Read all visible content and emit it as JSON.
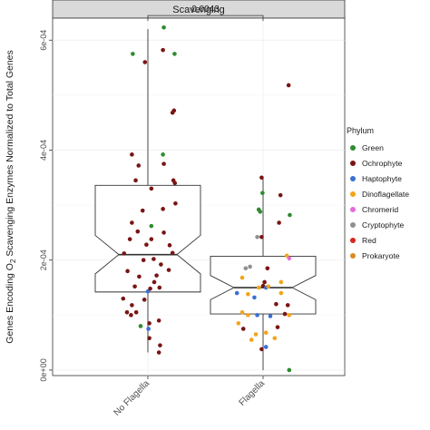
{
  "panel": {
    "strip_label": "Scavenging"
  },
  "significance": {
    "label": "0.0043"
  },
  "legend": {
    "title": "Phylum",
    "items": [
      {
        "label": "Green",
        "color": "#2e8b2e"
      },
      {
        "label": "Ochrophyte",
        "color": "#7a1414"
      },
      {
        "label": "Haptophyte",
        "color": "#3b6fd4"
      },
      {
        "label": "Dinoflagellate",
        "color": "#f2a51a"
      },
      {
        "label": "Chromerid",
        "color": "#e56bd9"
      },
      {
        "label": "Cryptophyte",
        "color": "#909090"
      },
      {
        "label": "Red",
        "color": "#d7261e"
      },
      {
        "label": "Prokaryote",
        "color": "#d98c1e"
      }
    ]
  },
  "chart_data": {
    "type": "boxplot",
    "title": "Scavenging",
    "ylabel": "Genes Encoding O2 Scavenging Enzymes Normalized to Total Genes",
    "ylabel_parts": {
      "before": "Genes Encoding O",
      "sub": "2",
      "after": " Scavenging Enzymes Normalized to Total Genes"
    },
    "xlabel": "",
    "ylim": [
      -1e-05,
      0.00064
    ],
    "y_ticks": [
      {
        "value": 0,
        "label": "0e+00"
      },
      {
        "value": 0.0002,
        "label": "2e-04"
      },
      {
        "value": 0.0004,
        "label": "4e-04"
      },
      {
        "value": 0.0006,
        "label": "6e-04"
      }
    ],
    "notched": true,
    "grid": true,
    "legend_position": "right",
    "categories": [
      "No Flagella",
      "Flagella"
    ],
    "boxes": [
      {
        "category": "No Flagella",
        "min": 3.2e-05,
        "q1": 0.000142,
        "median": 0.00021,
        "q3": 0.000336,
        "max": 0.00062,
        "notch_low": 0.000175,
        "notch_high": 0.000245
      },
      {
        "category": "Flagella",
        "min": 0.0,
        "q1": 0.000102,
        "median": 0.00015,
        "q3": 0.000207,
        "max": 0.00035,
        "notch_low": 0.000128,
        "notch_high": 0.000172
      }
    ],
    "points": [
      {
        "category": "No Flagella",
        "jitter": 0.55,
        "value": 0.000623,
        "phylum": "Green"
      },
      {
        "category": "No Flagella",
        "jitter": -0.52,
        "value": 0.000575,
        "phylum": "Green"
      },
      {
        "category": "No Flagella",
        "jitter": -0.1,
        "value": 0.00056,
        "phylum": "Ochrophyte"
      },
      {
        "category": "No Flagella",
        "jitter": 0.52,
        "value": 0.000582,
        "phylum": "Ochrophyte"
      },
      {
        "category": "No Flagella",
        "jitter": 0.92,
        "value": 0.000575,
        "phylum": "Green"
      },
      {
        "category": "No Flagella",
        "jitter": 0.9,
        "value": 0.000472,
        "phylum": "Ochrophyte"
      },
      {
        "category": "No Flagella",
        "jitter": 0.85,
        "value": 0.000468,
        "phylum": "Ochrophyte"
      },
      {
        "category": "No Flagella",
        "jitter": -0.55,
        "value": 0.000392,
        "phylum": "Ochrophyte"
      },
      {
        "category": "No Flagella",
        "jitter": -0.32,
        "value": 0.000372,
        "phylum": "Ochrophyte"
      },
      {
        "category": "No Flagella",
        "jitter": 0.52,
        "value": 0.000392,
        "phylum": "Green"
      },
      {
        "category": "No Flagella",
        "jitter": 0.55,
        "value": 0.000375,
        "phylum": "Ochrophyte"
      },
      {
        "category": "No Flagella",
        "jitter": -0.42,
        "value": 0.000345,
        "phylum": "Ochrophyte"
      },
      {
        "category": "No Flagella",
        "jitter": 0.88,
        "value": 0.000345,
        "phylum": "Ochrophyte"
      },
      {
        "category": "No Flagella",
        "jitter": 0.93,
        "value": 0.00034,
        "phylum": "Ochrophyte"
      },
      {
        "category": "No Flagella",
        "jitter": 0.12,
        "value": 0.00033,
        "phylum": "Ochrophyte"
      },
      {
        "category": "No Flagella",
        "jitter": -0.18,
        "value": 0.00029,
        "phylum": "Ochrophyte"
      },
      {
        "category": "No Flagella",
        "jitter": 0.52,
        "value": 0.000293,
        "phylum": "Ochrophyte"
      },
      {
        "category": "No Flagella",
        "jitter": 0.95,
        "value": 0.000303,
        "phylum": "Ochrophyte"
      },
      {
        "category": "No Flagella",
        "jitter": -0.55,
        "value": 0.000268,
        "phylum": "Ochrophyte"
      },
      {
        "category": "No Flagella",
        "jitter": 0.12,
        "value": 0.000262,
        "phylum": "Green"
      },
      {
        "category": "No Flagella",
        "jitter": -0.62,
        "value": 0.000238,
        "phylum": "Ochrophyte"
      },
      {
        "category": "No Flagella",
        "jitter": -0.35,
        "value": 0.000252,
        "phylum": "Ochrophyte"
      },
      {
        "category": "No Flagella",
        "jitter": 0.55,
        "value": 0.00025,
        "phylum": "Ochrophyte"
      },
      {
        "category": "No Flagella",
        "jitter": 0.12,
        "value": 0.000238,
        "phylum": "Ochrophyte"
      },
      {
        "category": "No Flagella",
        "jitter": -0.05,
        "value": 0.000228,
        "phylum": "Ochrophyte"
      },
      {
        "category": "No Flagella",
        "jitter": 0.75,
        "value": 0.000227,
        "phylum": "Ochrophyte"
      },
      {
        "category": "No Flagella",
        "jitter": 0.85,
        "value": 0.000213,
        "phylum": "Ochrophyte"
      },
      {
        "category": "No Flagella",
        "jitter": -0.82,
        "value": 0.000212,
        "phylum": "Ochrophyte"
      },
      {
        "category": "No Flagella",
        "jitter": -0.15,
        "value": 0.0002,
        "phylum": "Ochrophyte"
      },
      {
        "category": "No Flagella",
        "jitter": 0.2,
        "value": 0.000202,
        "phylum": "Ochrophyte"
      },
      {
        "category": "No Flagella",
        "jitter": 0.45,
        "value": 0.000192,
        "phylum": "Ochrophyte"
      },
      {
        "category": "No Flagella",
        "jitter": -0.7,
        "value": 0.00018,
        "phylum": "Ochrophyte"
      },
      {
        "category": "No Flagella",
        "jitter": 0.3,
        "value": 0.000172,
        "phylum": "Ochrophyte"
      },
      {
        "category": "No Flagella",
        "jitter": 0.72,
        "value": 0.000182,
        "phylum": "Ochrophyte"
      },
      {
        "category": "No Flagella",
        "jitter": -0.3,
        "value": 0.00017,
        "phylum": "Ochrophyte"
      },
      {
        "category": "No Flagella",
        "jitter": 0.22,
        "value": 0.00016,
        "phylum": "Ochrophyte"
      },
      {
        "category": "No Flagella",
        "jitter": 0.4,
        "value": 0.00015,
        "phylum": "Ochrophyte"
      },
      {
        "category": "No Flagella",
        "jitter": -0.45,
        "value": 0.000152,
        "phylum": "Ochrophyte"
      },
      {
        "category": "No Flagella",
        "jitter": 0.0,
        "value": 0.000143,
        "phylum": "Haptophyte"
      },
      {
        "category": "No Flagella",
        "jitter": 0.08,
        "value": 0.000148,
        "phylum": "Ochrophyte"
      },
      {
        "category": "No Flagella",
        "jitter": -0.12,
        "value": 0.000128,
        "phylum": "Ochrophyte"
      },
      {
        "category": "No Flagella",
        "jitter": -0.85,
        "value": 0.00013,
        "phylum": "Ochrophyte"
      },
      {
        "category": "No Flagella",
        "jitter": -0.55,
        "value": 0.000118,
        "phylum": "Ochrophyte"
      },
      {
        "category": "No Flagella",
        "jitter": -0.72,
        "value": 0.000105,
        "phylum": "Ochrophyte"
      },
      {
        "category": "No Flagella",
        "jitter": -0.58,
        "value": 0.0001,
        "phylum": "Ochrophyte"
      },
      {
        "category": "No Flagella",
        "jitter": -0.4,
        "value": 0.000105,
        "phylum": "Ochrophyte"
      },
      {
        "category": "No Flagella",
        "jitter": 0.05,
        "value": 8.5e-05,
        "phylum": "Ochrophyte"
      },
      {
        "category": "No Flagella",
        "jitter": 0.38,
        "value": 9e-05,
        "phylum": "Ochrophyte"
      },
      {
        "category": "No Flagella",
        "jitter": -0.25,
        "value": 8e-05,
        "phylum": "Green"
      },
      {
        "category": "No Flagella",
        "jitter": 0.02,
        "value": 7.5e-05,
        "phylum": "Haptophyte"
      },
      {
        "category": "No Flagella",
        "jitter": 0.05,
        "value": 5.8e-05,
        "phylum": "Ochrophyte"
      },
      {
        "category": "No Flagella",
        "jitter": 0.42,
        "value": 4.5e-05,
        "phylum": "Ochrophyte"
      },
      {
        "category": "No Flagella",
        "jitter": 0.38,
        "value": 3.2e-05,
        "phylum": "Ochrophyte"
      },
      {
        "category": "Flagella",
        "jitter": 0.88,
        "value": 0.000518,
        "phylum": "Ochrophyte"
      },
      {
        "category": "Flagella",
        "jitter": -0.05,
        "value": 0.00035,
        "phylum": "Ochrophyte"
      },
      {
        "category": "Flagella",
        "jitter": -0.02,
        "value": 0.000322,
        "phylum": "Green"
      },
      {
        "category": "Flagella",
        "jitter": 0.6,
        "value": 0.000318,
        "phylum": "Ochrophyte"
      },
      {
        "category": "Flagella",
        "jitter": -0.15,
        "value": 0.000292,
        "phylum": "Green"
      },
      {
        "category": "Flagella",
        "jitter": -0.1,
        "value": 0.000288,
        "phylum": "Green"
      },
      {
        "category": "Flagella",
        "jitter": 0.92,
        "value": 0.000282,
        "phylum": "Green"
      },
      {
        "category": "Flagella",
        "jitter": 0.55,
        "value": 0.000268,
        "phylum": "Ochrophyte"
      },
      {
        "category": "Flagella",
        "jitter": -0.2,
        "value": 0.000242,
        "phylum": "Cryptophyte"
      },
      {
        "category": "Flagella",
        "jitter": -0.05,
        "value": 0.000242,
        "phylum": "Ochrophyte"
      },
      {
        "category": "Flagella",
        "jitter": 0.82,
        "value": 0.000208,
        "phylum": "Dinoflagellate"
      },
      {
        "category": "Flagella",
        "jitter": 0.9,
        "value": 0.000203,
        "phylum": "Chromerid"
      },
      {
        "category": "Flagella",
        "jitter": -0.6,
        "value": 0.000185,
        "phylum": "Cryptophyte"
      },
      {
        "category": "Flagella",
        "jitter": -0.45,
        "value": 0.000188,
        "phylum": "Cryptophyte"
      },
      {
        "category": "Flagella",
        "jitter": 0.15,
        "value": 0.000185,
        "phylum": "Ochrophyte"
      },
      {
        "category": "Flagella",
        "jitter": -0.72,
        "value": 0.000168,
        "phylum": "Dinoflagellate"
      },
      {
        "category": "Flagella",
        "jitter": 0.05,
        "value": 0.00016,
        "phylum": "Ochrophyte"
      },
      {
        "category": "Flagella",
        "jitter": 0.62,
        "value": 0.00016,
        "phylum": "Dinoflagellate"
      },
      {
        "category": "Flagella",
        "jitter": -0.15,
        "value": 0.00015,
        "phylum": "Dinoflagellate"
      },
      {
        "category": "Flagella",
        "jitter": 0.0,
        "value": 0.000153,
        "phylum": "Ochrophyte"
      },
      {
        "category": "Flagella",
        "jitter": 0.1,
        "value": 0.00015,
        "phylum": "Haptophyte"
      },
      {
        "category": "Flagella",
        "jitter": 0.18,
        "value": 0.000152,
        "phylum": "Dinoflagellate"
      },
      {
        "category": "Flagella",
        "jitter": -0.9,
        "value": 0.00014,
        "phylum": "Haptophyte"
      },
      {
        "category": "Flagella",
        "jitter": -0.52,
        "value": 0.000138,
        "phylum": "Dinoflagellate"
      },
      {
        "category": "Flagella",
        "jitter": -0.3,
        "value": 0.000132,
        "phylum": "Haptophyte"
      },
      {
        "category": "Flagella",
        "jitter": 0.62,
        "value": 0.00014,
        "phylum": "Dinoflagellate"
      },
      {
        "category": "Flagella",
        "jitter": 0.45,
        "value": 0.00012,
        "phylum": "Ochrophyte"
      },
      {
        "category": "Flagella",
        "jitter": 0.85,
        "value": 0.000118,
        "phylum": "Ochrophyte"
      },
      {
        "category": "Flagella",
        "jitter": -0.72,
        "value": 0.000105,
        "phylum": "Dinoflagellate"
      },
      {
        "category": "Flagella",
        "jitter": -0.52,
        "value": 0.0001,
        "phylum": "Dinoflagellate"
      },
      {
        "category": "Flagella",
        "jitter": -0.2,
        "value": 0.0001,
        "phylum": "Haptophyte"
      },
      {
        "category": "Flagella",
        "jitter": 0.25,
        "value": 9.8e-05,
        "phylum": "Haptophyte"
      },
      {
        "category": "Flagella",
        "jitter": 0.75,
        "value": 0.000102,
        "phylum": "Ochrophyte"
      },
      {
        "category": "Flagella",
        "jitter": 0.9,
        "value": 0.0001,
        "phylum": "Dinoflagellate"
      },
      {
        "category": "Flagella",
        "jitter": -0.85,
        "value": 8.5e-05,
        "phylum": "Dinoflagellate"
      },
      {
        "category": "Flagella",
        "jitter": -0.68,
        "value": 7.5e-05,
        "phylum": "Ochrophyte"
      },
      {
        "category": "Flagella",
        "jitter": -0.25,
        "value": 6.5e-05,
        "phylum": "Dinoflagellate"
      },
      {
        "category": "Flagella",
        "jitter": 0.1,
        "value": 6.8e-05,
        "phylum": "Dinoflagellate"
      },
      {
        "category": "Flagella",
        "jitter": 0.5,
        "value": 7.8e-05,
        "phylum": "Ochrophyte"
      },
      {
        "category": "Flagella",
        "jitter": -0.4,
        "value": 5.5e-05,
        "phylum": "Dinoflagellate"
      },
      {
        "category": "Flagella",
        "jitter": 0.4,
        "value": 5.8e-05,
        "phylum": "Dinoflagellate"
      },
      {
        "category": "Flagella",
        "jitter": 0.1,
        "value": 4.2e-05,
        "phylum": "Haptophyte"
      },
      {
        "category": "Flagella",
        "jitter": -0.05,
        "value": 3.8e-05,
        "phylum": "Ochrophyte"
      },
      {
        "category": "Flagella",
        "jitter": 0.9,
        "value": 0.0,
        "phylum": "Green"
      }
    ]
  }
}
